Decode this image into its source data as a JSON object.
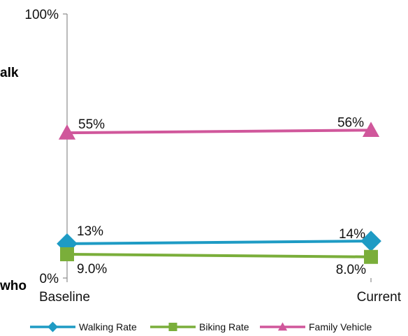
{
  "chart_data": {
    "type": "line",
    "categories": [
      "Baseline",
      "Current"
    ],
    "ylim": [
      0,
      100
    ],
    "y_tick_labels": [
      "0%",
      "100%"
    ],
    "grid": false,
    "legend_position": "bottom",
    "side_labels": [
      "alk",
      "who"
    ],
    "series": [
      {
        "name": "Walking Rate",
        "values": [
          13,
          14
        ],
        "labels": [
          "13%",
          "14%"
        ],
        "color": "#1e9bc4",
        "marker": "diamond"
      },
      {
        "name": "Biking Rate",
        "values": [
          9.0,
          8.0
        ],
        "labels": [
          "9.0%",
          "8.0%"
        ],
        "color": "#7aae3a",
        "marker": "square"
      },
      {
        "name": "Family Vehicle",
        "values": [
          55,
          56
        ],
        "labels": [
          "55%",
          "56%"
        ],
        "color": "#d0579b",
        "marker": "triangle"
      }
    ]
  }
}
